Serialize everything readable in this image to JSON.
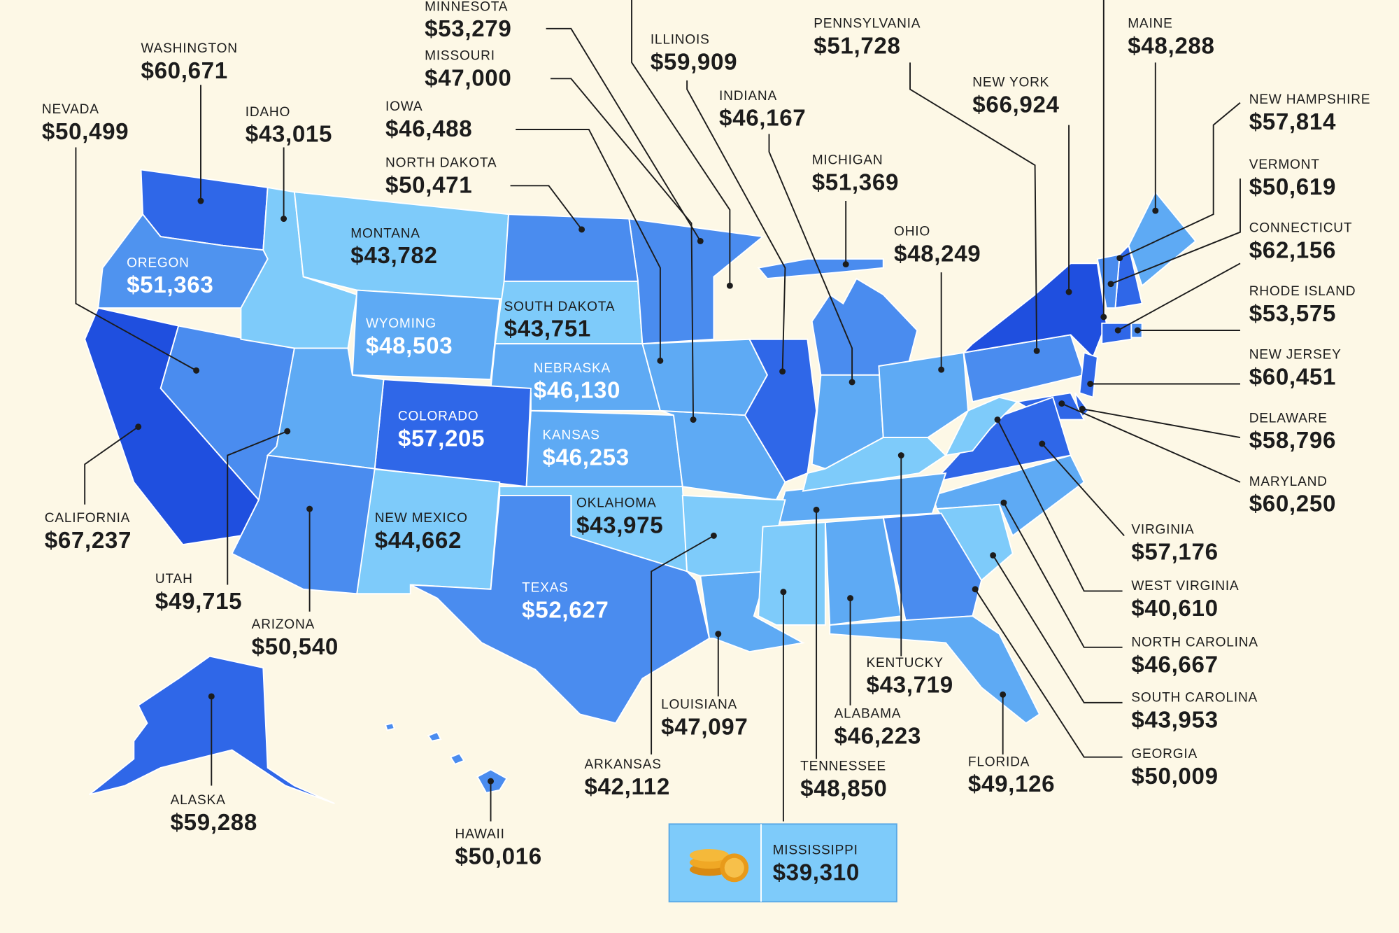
{
  "states": [
    {
      "name": "WASHINGTON",
      "value": "$60,671",
      "color": "#2f67e8"
    },
    {
      "name": "NEVADA",
      "value": "$50,499",
      "color": "#4a8cef"
    },
    {
      "name": "IDAHO",
      "value": "$43,015",
      "color": "#7ecbfa"
    },
    {
      "name": "OREGON",
      "value": "$51,363",
      "color": "#4f93ef"
    },
    {
      "name": "MONTANA",
      "value": "$43,782",
      "color": "#7ecbfa"
    },
    {
      "name": "WYOMING",
      "value": "$48,503",
      "color": "#5eaaf4"
    },
    {
      "name": "SOUTH DAKOTA",
      "value": "$43,751",
      "color": "#7ecbfa"
    },
    {
      "name": "NEBRASKA",
      "value": "$46,130",
      "color": "#5eaaf4"
    },
    {
      "name": "COLORADO",
      "value": "$57,205",
      "color": "#2f67e8"
    },
    {
      "name": "KANSAS",
      "value": "$46,253",
      "color": "#5eaaf4"
    },
    {
      "name": "OKLAHOMA",
      "value": "$43,975",
      "color": "#7ecbfa"
    },
    {
      "name": "NEW MEXICO",
      "value": "$44,662",
      "color": "#7ecbfa"
    },
    {
      "name": "TEXAS",
      "value": "$52,627",
      "color": "#4a8cef"
    },
    {
      "name": "CALIFORNIA",
      "value": "$67,237",
      "color": "#1f4fdf"
    },
    {
      "name": "UTAH",
      "value": "$49,715",
      "color": "#5eaaf4"
    },
    {
      "name": "ARIZONA",
      "value": "$50,540",
      "color": "#4a8cef"
    },
    {
      "name": "ALASKA",
      "value": "$59,288",
      "color": "#2f67e8"
    },
    {
      "name": "HAWAII",
      "value": "$50,016",
      "color": "#4a8cef"
    },
    {
      "name": "MINNESOTA",
      "value": "$53,279",
      "color": "#4a8cef"
    },
    {
      "name": "MISSOURI",
      "value": "$47,000",
      "color": "#5eaaf4"
    },
    {
      "name": "IOWA",
      "value": "$46,488",
      "color": "#5eaaf4"
    },
    {
      "name": "NORTH DAKOTA",
      "value": "$50,471",
      "color": "#4a8cef"
    },
    {
      "name": "ILLINOIS",
      "value": "$59,909",
      "color": "#2f67e8"
    },
    {
      "name": "INDIANA",
      "value": "$46,167",
      "color": "#5eaaf4"
    },
    {
      "name": "PENNSYLVANIA",
      "value": "$51,728",
      "color": "#4a8cef"
    },
    {
      "name": "MICHIGAN",
      "value": "$51,369",
      "color": "#4a8cef"
    },
    {
      "name": "OHIO",
      "value": "$48,249",
      "color": "#5eaaf4"
    },
    {
      "name": "NEW YORK",
      "value": "$66,924",
      "color": "#1f4fdf"
    },
    {
      "name": "MAINE",
      "value": "$48,288",
      "color": "#5eaaf4"
    },
    {
      "name": "NEW HAMPSHIRE",
      "value": "$57,814",
      "color": "#2f67e8"
    },
    {
      "name": "VERMONT",
      "value": "$50,619",
      "color": "#4a8cef"
    },
    {
      "name": "CONNECTICUT",
      "value": "$62,156",
      "color": "#2f67e8"
    },
    {
      "name": "RHODE ISLAND",
      "value": "$53,575",
      "color": "#4a8cef"
    },
    {
      "name": "NEW JERSEY",
      "value": "$60,451",
      "color": "#2f67e8"
    },
    {
      "name": "DELAWARE",
      "value": "$58,796",
      "color": "#2f67e8"
    },
    {
      "name": "MARYLAND",
      "value": "$60,250",
      "color": "#2f67e8"
    },
    {
      "name": "VIRGINIA",
      "value": "$57,176",
      "color": "#2f67e8"
    },
    {
      "name": "WEST VIRGINIA",
      "value": "$40,610",
      "color": "#7ecbfa"
    },
    {
      "name": "NORTH CAROLINA",
      "value": "$46,667",
      "color": "#5eaaf4"
    },
    {
      "name": "SOUTH CAROLINA",
      "value": "$43,953",
      "color": "#7ecbfa"
    },
    {
      "name": "GEORGIA",
      "value": "$50,009",
      "color": "#4a8cef"
    },
    {
      "name": "FLORIDA",
      "value": "$49,126",
      "color": "#5eaaf4"
    },
    {
      "name": "TENNESSEE",
      "value": "$48,850",
      "color": "#5eaaf4"
    },
    {
      "name": "ALABAMA",
      "value": "$46,223",
      "color": "#5eaaf4"
    },
    {
      "name": "KENTUCKY",
      "value": "$43,719",
      "color": "#7ecbfa"
    },
    {
      "name": "LOUISIANA",
      "value": "$47,097",
      "color": "#5eaaf4"
    },
    {
      "name": "ARKANSAS",
      "value": "$42,112",
      "color": "#7ecbfa"
    },
    {
      "name": "MISSISSIPPI",
      "value": "$39,310",
      "color": "#7ecbfa"
    }
  ]
}
